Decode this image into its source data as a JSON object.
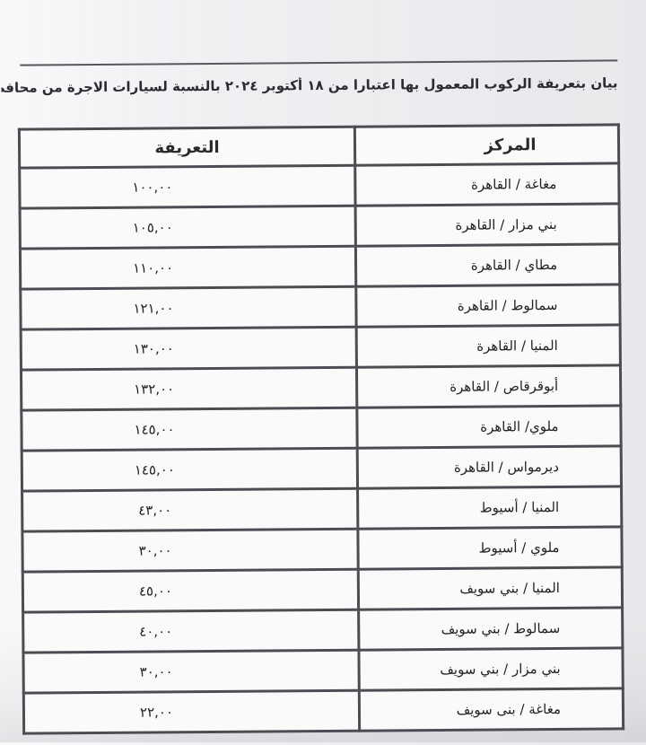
{
  "document": {
    "title": "بيان بتعريفة الركوب المعمول بها اعتبارا من ١٨ أكتوبر ٢٠٢٤ بالنسبة لسيارات الاجرة من محافظة المنيا الي المحافظات :"
  },
  "fare_table": {
    "column_headers": {
      "center": "المركز",
      "tariff": "التعريفة"
    },
    "rows": [
      {
        "center": "مغاغة / القاهرة",
        "tariff": "١٠٠,٠٠"
      },
      {
        "center": "بني مزار / القاهرة",
        "tariff": "١٠٥,٠٠"
      },
      {
        "center": "مطاي / القاهرة",
        "tariff": "١١٠,٠٠"
      },
      {
        "center": "سمالوط / القاهرة",
        "tariff": "١٢١,٠٠"
      },
      {
        "center": "المنيا / القاهرة",
        "tariff": "١٣٠,٠٠"
      },
      {
        "center": "أبوقرقاص / القاهرة",
        "tariff": "١٣٢,٠٠"
      },
      {
        "center": "ملوي/ القاهرة",
        "tariff": "١٤٥,٠٠"
      },
      {
        "center": "ديرمواس / القاهرة",
        "tariff": "١٤٥,٠٠"
      },
      {
        "center": "المنيا / أسيوط",
        "tariff": "٤٣,٠٠"
      },
      {
        "center": "ملوي / أسيوط",
        "tariff": "٣٠,٠٠"
      },
      {
        "center": "المنيا / بني سويف",
        "tariff": "٤٥,٠٠"
      },
      {
        "center": "سمالوط / بني سويف",
        "tariff": "٤٠,٠٠"
      },
      {
        "center": "بني مزار / بني سويف",
        "tariff": "٣٠,٠٠"
      },
      {
        "center": "مغاغة / بنى سويف",
        "tariff": "٢٢,٠٠"
      }
    ]
  },
  "colors": {
    "paper": "#f1f1f4",
    "cell": "#fafafb",
    "border": "#4c4c52",
    "ink": "#262626"
  }
}
